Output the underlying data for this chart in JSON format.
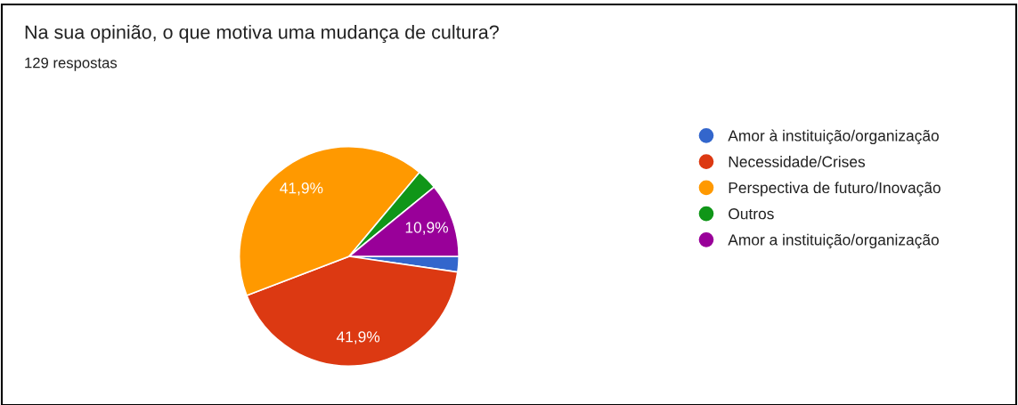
{
  "chart_data": {
    "type": "pie",
    "title": "Na sua opinião, o que motiva uma mudança de cultura?",
    "subtitle": "129 respostas",
    "categories": [
      "Amor à instituição/organização",
      "Necessidade/Crises",
      "Perspectiva de futuro/Inovação",
      "Outros",
      "Amor a instituição/organização"
    ],
    "values": [
      2.3,
      41.9,
      41.9,
      3.0,
      10.9
    ],
    "colors": [
      "#3366cc",
      "#dc3912",
      "#ff9900",
      "#109618",
      "#990099"
    ],
    "value_labels": [
      null,
      "41,9%",
      "41,9%",
      null,
      "10,9%"
    ],
    "legend": "right"
  }
}
